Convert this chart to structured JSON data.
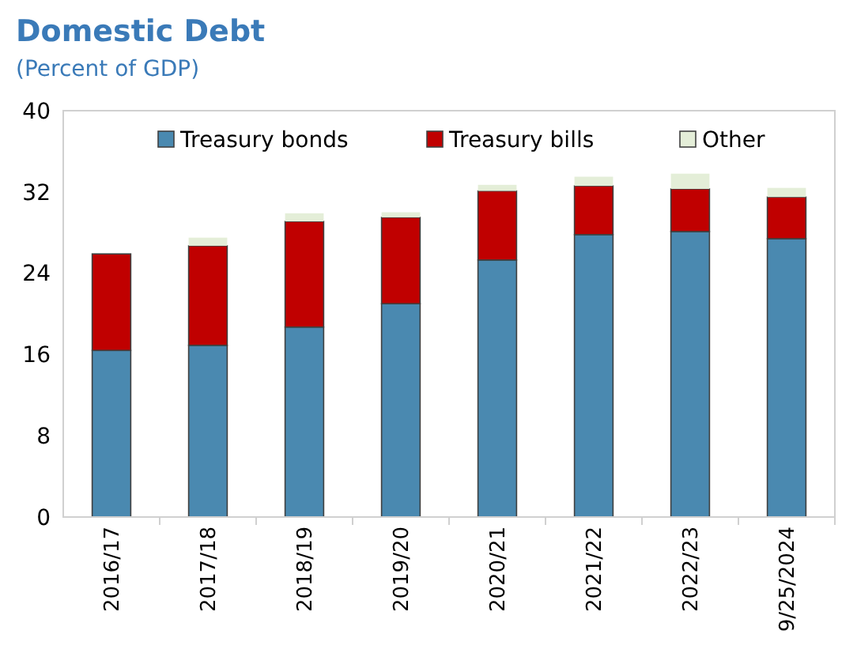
{
  "chart_data": {
    "type": "bar",
    "title": "Domestic Debt",
    "subtitle": "(Percent of GDP)",
    "stacked": true,
    "categories": [
      "2016/17",
      "2017/18",
      "2018/19",
      "2019/20",
      "2020/21",
      "2021/22",
      "2022/23",
      "9/25/2024"
    ],
    "series": [
      {
        "name": "Treasury bonds",
        "color": "#4a89b0",
        "values": [
          16.4,
          16.9,
          18.7,
          21.0,
          25.3,
          27.8,
          28.1,
          27.4
        ]
      },
      {
        "name": "Treasury bills",
        "color": "#c00000",
        "values": [
          9.5,
          9.8,
          10.4,
          8.5,
          6.8,
          4.8,
          4.2,
          4.1
        ]
      },
      {
        "name": "Other",
        "color": "#e4eed8",
        "values": [
          null,
          0.8,
          0.8,
          0.5,
          0.6,
          0.9,
          1.5,
          0.9
        ]
      }
    ],
    "ylim": [
      0,
      40
    ],
    "yticks": [
      0,
      8,
      16,
      24,
      32,
      40
    ],
    "grid": false,
    "legend": "top"
  }
}
